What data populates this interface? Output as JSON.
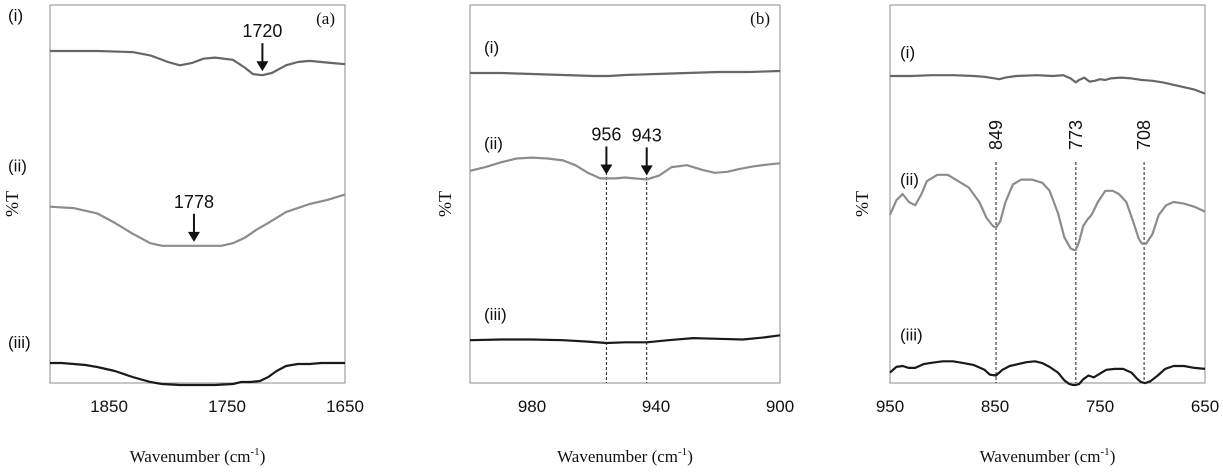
{
  "chart_data": [
    {
      "type": "line",
      "panel_label": "(a)",
      "xlabel": "Wavenumber (cm-1)",
      "ylabel": "%T",
      "xlim": [
        1900,
        1650
      ],
      "ylim": [
        0,
        1
      ],
      "xticks": [
        "1850",
        "1750",
        "1650"
      ],
      "grid": false,
      "series": [
        {
          "name": "(i)",
          "color": "#666666",
          "x": [
            1900,
            1860,
            1830,
            1815,
            1800,
            1790,
            1780,
            1770,
            1760,
            1745,
            1735,
            1728,
            1720,
            1712,
            1700,
            1690,
            1680,
            1670,
            1660,
            1650
          ],
          "y": [
            0.9,
            0.9,
            0.89,
            0.86,
            0.8,
            0.77,
            0.79,
            0.83,
            0.84,
            0.82,
            0.75,
            0.69,
            0.68,
            0.7,
            0.77,
            0.8,
            0.81,
            0.8,
            0.79,
            0.78
          ]
        },
        {
          "name": "(ii)",
          "color": "#8c8c8c",
          "x": [
            1900,
            1880,
            1860,
            1845,
            1830,
            1815,
            1805,
            1795,
            1785,
            1775,
            1765,
            1755,
            1745,
            1735,
            1725,
            1715,
            1700,
            1690,
            1680,
            1665,
            1650
          ],
          "y": [
            0.58,
            0.57,
            0.53,
            0.46,
            0.38,
            0.31,
            0.29,
            0.29,
            0.29,
            0.29,
            0.29,
            0.29,
            0.31,
            0.35,
            0.41,
            0.46,
            0.54,
            0.57,
            0.6,
            0.63,
            0.67
          ]
        },
        {
          "name": "(iii)",
          "color": "#1a1a1a",
          "x": [
            1900,
            1890,
            1880,
            1870,
            1860,
            1845,
            1830,
            1815,
            1805,
            1790,
            1775,
            1760,
            1745,
            1738,
            1730,
            1722,
            1715,
            1708,
            1700,
            1690,
            1680,
            1670,
            1650
          ],
          "y": [
            0.22,
            0.22,
            0.21,
            0.2,
            0.18,
            0.14,
            0.08,
            0.03,
            0.01,
            0.0,
            0.0,
            0.0,
            0.01,
            0.03,
            0.03,
            0.04,
            0.08,
            0.14,
            0.19,
            0.21,
            0.21,
            0.22,
            0.22
          ]
        }
      ],
      "annotations": [
        {
          "text": "1720",
          "x": 1720,
          "y": 0.68,
          "arrow": true
        },
        {
          "text": "1778",
          "x": 1778,
          "y": 0.29,
          "arrow": true
        }
      ]
    },
    {
      "type": "line",
      "panel_label": "(b)",
      "xlabel": "Wavenumber (cm-1)",
      "ylabel": "%T",
      "xlim": [
        1000,
        900
      ],
      "ylim": [
        0,
        1
      ],
      "xticks": [
        "980",
        "940",
        "900"
      ],
      "grid": false,
      "series": [
        {
          "name": "(i)",
          "color": "#666666",
          "x": [
            1000,
            990,
            980,
            970,
            960,
            955,
            950,
            940,
            930,
            920,
            910,
            900
          ],
          "y": [
            0.82,
            0.82,
            0.81,
            0.8,
            0.79,
            0.79,
            0.8,
            0.81,
            0.82,
            0.83,
            0.83,
            0.84
          ]
        },
        {
          "name": "(ii)",
          "color": "#8c8c8c",
          "x": [
            1000,
            995,
            990,
            985,
            980,
            975,
            970,
            966,
            962,
            958,
            956,
            953,
            950,
            947,
            943,
            939,
            935,
            930,
            925,
            921,
            917,
            913,
            908,
            903,
            900
          ],
          "y": [
            0.57,
            0.61,
            0.66,
            0.7,
            0.71,
            0.7,
            0.68,
            0.63,
            0.55,
            0.49,
            0.49,
            0.49,
            0.5,
            0.49,
            0.48,
            0.52,
            0.61,
            0.63,
            0.58,
            0.55,
            0.56,
            0.59,
            0.62,
            0.64,
            0.65
          ]
        },
        {
          "name": "(iii)",
          "color": "#1a1a1a",
          "x": [
            1000,
            990,
            980,
            970,
            962,
            956,
            950,
            943,
            936,
            928,
            920,
            912,
            905,
            900
          ],
          "y": [
            0.14,
            0.15,
            0.15,
            0.14,
            0.12,
            0.1,
            0.11,
            0.11,
            0.14,
            0.17,
            0.16,
            0.15,
            0.18,
            0.21
          ]
        }
      ],
      "annotations": [
        {
          "text": "956",
          "x": 956,
          "y": 0.49,
          "arrow": true
        },
        {
          "text": "943",
          "x": 943,
          "y": 0.48,
          "arrow": true
        }
      ],
      "vlines": [
        956,
        943
      ]
    },
    {
      "type": "line",
      "panel_label": "",
      "xlabel": "Wavenumber (cm-1)",
      "ylabel": "%T",
      "xlim": [
        950,
        650
      ],
      "ylim": [
        0,
        1
      ],
      "xticks": [
        "950",
        "850",
        "750",
        "650"
      ],
      "grid": false,
      "series": [
        {
          "name": "(i)",
          "color": "#666666",
          "x": [
            950,
            930,
            910,
            890,
            870,
            860,
            850,
            846,
            840,
            830,
            810,
            795,
            785,
            778,
            773,
            770,
            765,
            760,
            755,
            750,
            745,
            740,
            730,
            720,
            710,
            700,
            690,
            680,
            670,
            660,
            650
          ],
          "y": [
            0.8,
            0.8,
            0.81,
            0.81,
            0.8,
            0.79,
            0.77,
            0.76,
            0.78,
            0.8,
            0.81,
            0.8,
            0.81,
            0.77,
            0.72,
            0.75,
            0.78,
            0.73,
            0.74,
            0.76,
            0.75,
            0.77,
            0.78,
            0.77,
            0.75,
            0.74,
            0.72,
            0.69,
            0.66,
            0.63,
            0.58
          ]
        },
        {
          "name": "(ii)",
          "color": "#8c8c8c",
          "x": [
            950,
            944,
            938,
            932,
            926,
            920,
            915,
            905,
            895,
            885,
            875,
            865,
            858,
            852,
            849,
            845,
            840,
            833,
            825,
            815,
            805,
            798,
            790,
            784,
            778,
            775,
            773,
            770,
            766,
            762,
            758,
            752,
            745,
            738,
            732,
            725,
            718,
            713,
            710,
            706,
            700,
            694,
            687,
            680,
            670,
            660,
            650
          ],
          "y": [
            0.47,
            0.56,
            0.6,
            0.55,
            0.53,
            0.6,
            0.68,
            0.72,
            0.72,
            0.68,
            0.64,
            0.55,
            0.45,
            0.4,
            0.39,
            0.43,
            0.55,
            0.66,
            0.69,
            0.69,
            0.67,
            0.62,
            0.48,
            0.33,
            0.26,
            0.25,
            0.25,
            0.3,
            0.4,
            0.44,
            0.47,
            0.55,
            0.62,
            0.62,
            0.6,
            0.55,
            0.42,
            0.32,
            0.29,
            0.29,
            0.35,
            0.47,
            0.53,
            0.55,
            0.54,
            0.52,
            0.49
          ]
        },
        {
          "name": "(iii)",
          "color": "#1a1a1a",
          "x": [
            950,
            944,
            938,
            932,
            926,
            918,
            912,
            900,
            890,
            880,
            870,
            860,
            855,
            849,
            843,
            836,
            828,
            820,
            812,
            805,
            798,
            790,
            784,
            779,
            776,
            773,
            770,
            766,
            761,
            756,
            750,
            744,
            736,
            728,
            720,
            715,
            711,
            707,
            702,
            695,
            688,
            680,
            670,
            660,
            650
          ],
          "y": [
            0.13,
            0.19,
            0.2,
            0.18,
            0.18,
            0.22,
            0.23,
            0.25,
            0.25,
            0.23,
            0.21,
            0.16,
            0.11,
            0.1,
            0.16,
            0.2,
            0.22,
            0.24,
            0.25,
            0.23,
            0.19,
            0.13,
            0.05,
            0.01,
            0.0,
            0.0,
            0.01,
            0.06,
            0.1,
            0.08,
            0.12,
            0.16,
            0.17,
            0.17,
            0.13,
            0.07,
            0.03,
            0.02,
            0.04,
            0.1,
            0.17,
            0.2,
            0.2,
            0.18,
            0.17
          ]
        }
      ],
      "annotations": [
        {
          "text": "849",
          "x": 849,
          "y": 0.39,
          "arrow": false
        },
        {
          "text": "773",
          "x": 773,
          "y": 0.25,
          "arrow": false
        },
        {
          "text": "708",
          "x": 708,
          "y": 0.29,
          "arrow": false
        }
      ],
      "vlines": [
        849,
        773,
        708
      ]
    }
  ]
}
